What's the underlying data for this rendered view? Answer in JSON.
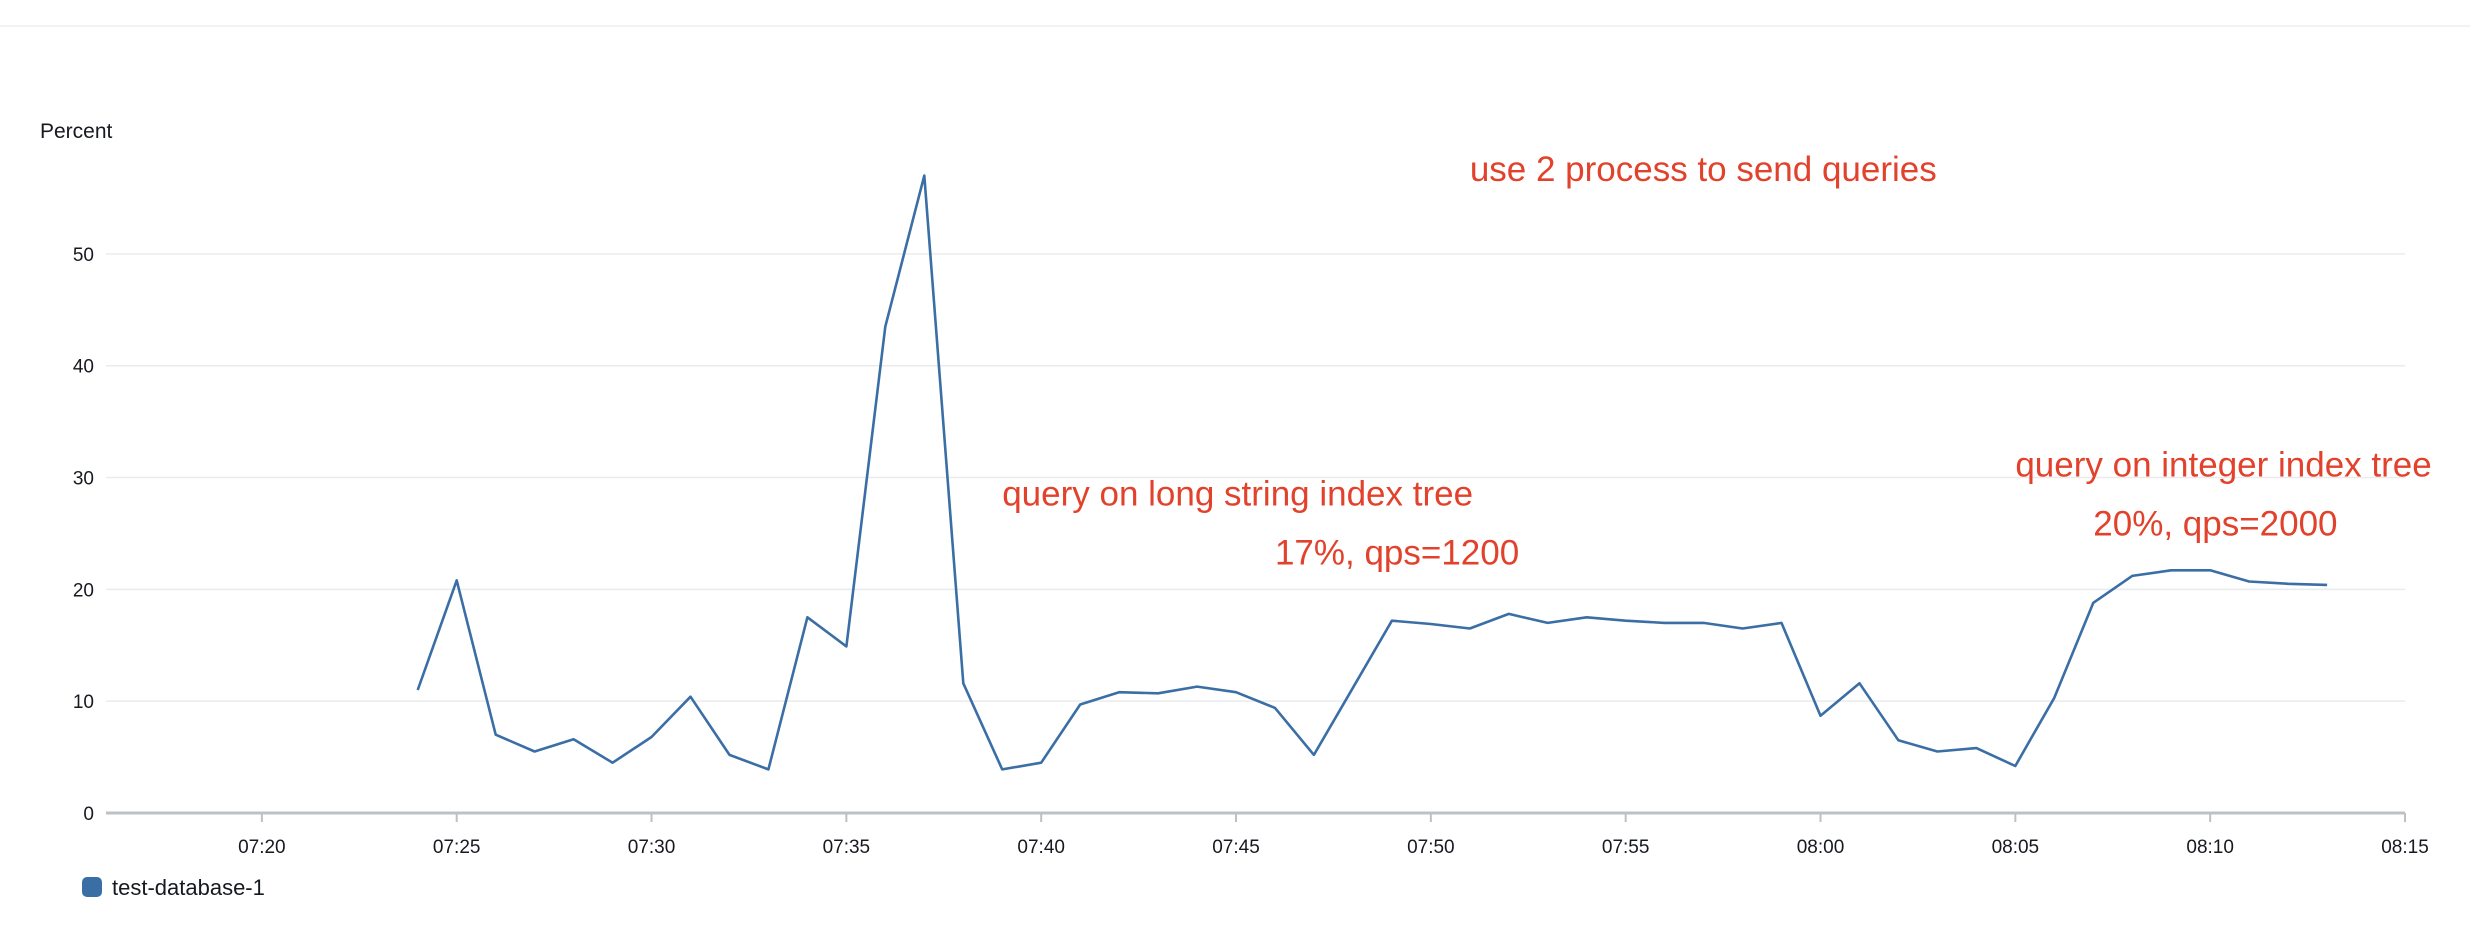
{
  "chart_data": {
    "type": "line",
    "title": "",
    "xlabel": "",
    "ylabel": "Percent",
    "ylim": [
      0,
      57.5
    ],
    "yticks": [
      "0",
      "10",
      "20",
      "30",
      "40",
      "50"
    ],
    "xticks": [
      "07:20",
      "07:25",
      "07:30",
      "07:35",
      "07:40",
      "07:45",
      "07:50",
      "07:55",
      "08:00",
      "08:05",
      "08:10",
      "08:15"
    ],
    "xlim": [
      "07:16",
      "08:15"
    ],
    "grid": true,
    "legend": {
      "position": "bottom-left",
      "entries": [
        "test-database-1"
      ]
    },
    "series": [
      {
        "name": "test-database-1",
        "color": "#3a6ea5",
        "x": [
          "07:24",
          "07:25",
          "07:26",
          "07:27",
          "07:28",
          "07:29",
          "07:30",
          "07:31",
          "07:32",
          "07:33",
          "07:34",
          "07:35",
          "07:36",
          "07:37",
          "07:38",
          "07:39",
          "07:40",
          "07:41",
          "07:42",
          "07:43",
          "07:44",
          "07:45",
          "07:46",
          "07:47",
          "07:48",
          "07:49",
          "07:50",
          "07:51",
          "07:52",
          "07:53",
          "07:54",
          "07:55",
          "07:56",
          "07:57",
          "07:58",
          "07:59",
          "08:00",
          "08:01",
          "08:02",
          "08:03",
          "08:04",
          "08:05",
          "08:06",
          "08:07",
          "08:08",
          "08:09",
          "08:10",
          "08:11",
          "08:12",
          "08:13"
        ],
        "values": [
          11,
          20.8,
          7,
          5.5,
          6.6,
          4.5,
          6.8,
          10.4,
          5.2,
          3.9,
          17.5,
          14.9,
          43.5,
          57,
          11.6,
          3.9,
          4.5,
          9.7,
          10.8,
          10.7,
          11.3,
          10.8,
          9.4,
          5.2,
          11.2,
          17.2,
          16.9,
          16.5,
          17.8,
          17,
          17.5,
          17.2,
          17,
          17,
          16.5,
          17,
          8.7,
          11.6,
          6.5,
          5.5,
          5.8,
          4.2,
          10.3,
          18.8,
          21.2,
          21.7,
          21.7,
          20.7,
          20.5,
          20.4
        ]
      }
    ],
    "annotations": [
      {
        "text": "use 2 process to send queries",
        "x": "07:51",
        "y": 56.5
      },
      {
        "text": "query on long string index tree",
        "x": "07:39",
        "y": 27.5
      },
      {
        "text": "17%, qps=1200",
        "x": "07:46",
        "y": 22.2
      },
      {
        "text": "query on integer index tree",
        "x": "08:05",
        "y": 30.1
      },
      {
        "text": "20%, qps=2000",
        "x": "08:07",
        "y": 24.8
      }
    ]
  },
  "colors": {
    "line": "#3a6ea5",
    "annotation": "#e2412b",
    "grid": "#e9ebed",
    "axis": "#bdc1c5",
    "text": "#16191f"
  }
}
